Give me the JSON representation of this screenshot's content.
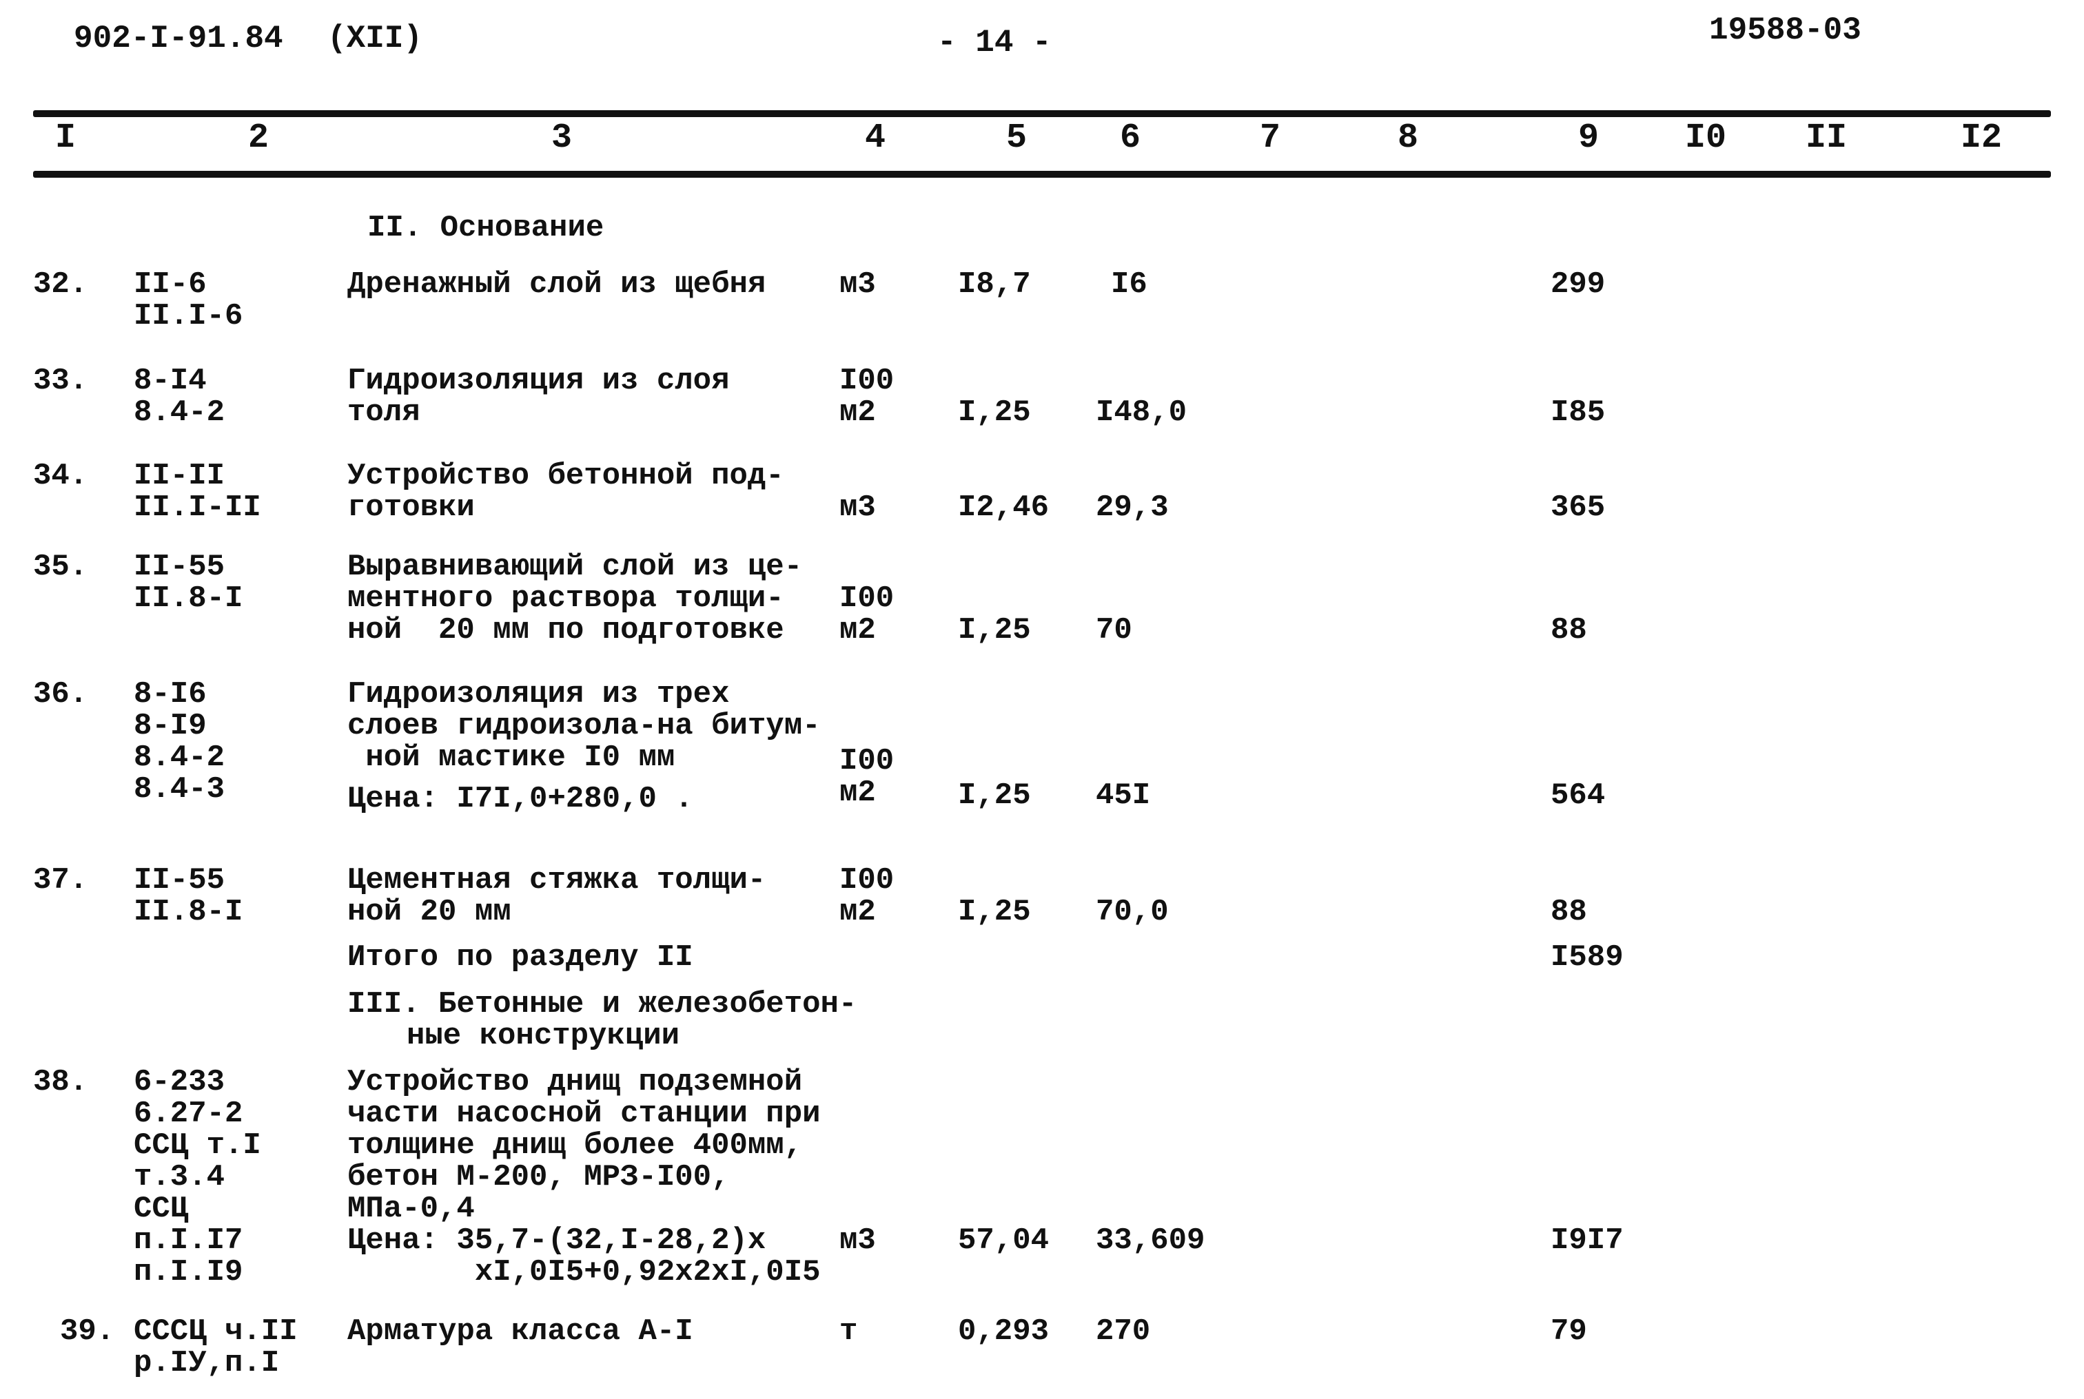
{
  "header": {
    "doc_code": "902-I-91.84",
    "volume": "(XII)",
    "page": "- 14 -",
    "inventory": "19588-03"
  },
  "columns": [
    "I",
    "2",
    "3",
    "4",
    "5",
    "6",
    "7",
    "8",
    "9",
    "I0",
    "II",
    "I2"
  ],
  "sections": {
    "s2_title": "II. Основание",
    "s2_total_label": "Итого по разделу II",
    "s2_total_value": "I589",
    "s3_title": [
      "III. Бетонные и железобетон-",
      "ные конструкции"
    ]
  },
  "rows": [
    {
      "num": "32.",
      "code": [
        "II-6",
        "II.I-6"
      ],
      "desc": [
        "Дренажный слой из щебня"
      ],
      "unit": [
        "м3"
      ],
      "qty": "I8,7",
      "price": "I6",
      "total": "299"
    },
    {
      "num": "33.",
      "code": [
        "8-I4",
        "8.4-2"
      ],
      "desc": [
        "Гидроизоляция из слоя",
        "толя"
      ],
      "unit": [
        "I00",
        "м2"
      ],
      "qty": "I,25",
      "price": "I48,0",
      "total": "I85"
    },
    {
      "num": "34.",
      "code": [
        "II-II",
        "II.I-II"
      ],
      "desc": [
        "Устройство бетонной под-",
        "готовки"
      ],
      "unit": [
        "м3"
      ],
      "qty": "I2,46",
      "price": "29,3",
      "total": "365"
    },
    {
      "num": "35.",
      "code": [
        "II-55",
        "II.8-I"
      ],
      "desc": [
        "Выравнивающий слой из це-",
        "ментного раствора толщи-",
        "ной  20 мм по подготовке"
      ],
      "unit": [
        "I00",
        "м2"
      ],
      "qty": "I,25",
      "price": "70",
      "total": "88"
    },
    {
      "num": "36.",
      "code": [
        "8-I6",
        "8-I9",
        "8.4-2",
        "8.4-3"
      ],
      "desc": [
        "Гидроизоляция из трех",
        "слоев гидроизола-на битум-",
        " ной мастике I0 мм",
        "Цена: I7I,0+280,0 ."
      ],
      "unit": [
        "I00",
        "м2"
      ],
      "qty": "I,25",
      "price": "45I",
      "total": "564"
    },
    {
      "num": "37.",
      "code": [
        "II-55",
        "II.8-I"
      ],
      "desc": [
        "Цементная стяжка толщи-",
        "ной 20 мм"
      ],
      "unit": [
        "I00",
        "м2"
      ],
      "qty": "I,25",
      "price": "70,0",
      "total": "88"
    },
    {
      "num": "38.",
      "code": [
        "6-233",
        "6.27-2",
        "ССЦ т.I",
        "т.3.4",
        "ССЦ",
        "п.I.I7",
        "п.I.I9"
      ],
      "desc": [
        "Устройство днищ подземной",
        "части насосной станции при",
        "толщине днищ более 400мм,",
        "бетон М-200, МРЗ-I00,",
        "МПа-0,4",
        "Цена: 35,7-(32,I-28,2)x",
        "       xI,0I5+0,92x2xI,0I5"
      ],
      "unit": [
        "м3"
      ],
      "qty": "57,04",
      "price": "33,609",
      "total": "I9I7"
    },
    {
      "num": "39.",
      "code": [
        "СССЦ ч.II",
        "р.IУ,п.I"
      ],
      "desc": [
        "Арматура класса А-I"
      ],
      "unit": [
        "т"
      ],
      "qty": "0,293",
      "price": "270",
      "total": "79"
    }
  ]
}
